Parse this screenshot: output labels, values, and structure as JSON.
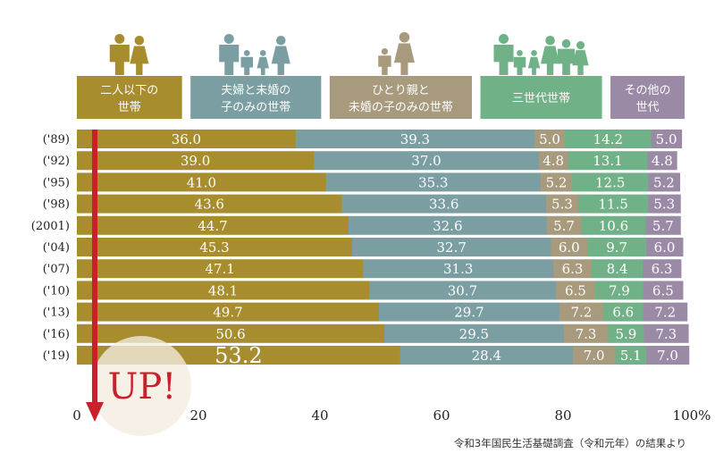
{
  "chart_data": {
    "type": "bar",
    "stacked": true,
    "orientation": "horizontal",
    "categories": [
      "('89)",
      "('92)",
      "('95)",
      "('98)",
      "(2001)",
      "('04)",
      "('07)",
      "('10)",
      "('13)",
      "('16)",
      "('19)"
    ],
    "series": [
      {
        "name": "二人以下の世帯",
        "header_lines": [
          "二人以下の",
          "世帯"
        ],
        "color": "#a88d2f",
        "icon": "couple-icon",
        "values": [
          36.0,
          39.0,
          41.0,
          43.6,
          44.7,
          45.3,
          47.1,
          48.1,
          49.7,
          50.6,
          53.2
        ]
      },
      {
        "name": "夫婦と未婚の子のみの世帯",
        "header_lines": [
          "夫婦と未婚の",
          "子のみの世帯"
        ],
        "color": "#7a9ea1",
        "icon": "family-icon",
        "values": [
          39.3,
          37.0,
          35.3,
          33.6,
          32.6,
          32.7,
          31.3,
          30.7,
          29.7,
          29.5,
          28.4
        ]
      },
      {
        "name": "ひとり親と未婚の子のみの世帯",
        "header_lines": [
          "ひとり親と",
          "未婚の子のみの世帯"
        ],
        "color": "#a79a7d",
        "icon": "single-parent-icon",
        "values": [
          5.0,
          4.8,
          5.2,
          5.3,
          5.7,
          6.0,
          6.3,
          6.5,
          7.2,
          7.3,
          7.0
        ]
      },
      {
        "name": "三世代世帯",
        "header_lines": [
          "三世代世帯"
        ],
        "color": "#71b187",
        "icon": "three-generation-icon",
        "values": [
          14.2,
          13.1,
          12.5,
          11.5,
          10.6,
          9.7,
          8.4,
          7.9,
          6.6,
          5.9,
          5.1
        ]
      },
      {
        "name": "その他の世代",
        "header_lines": [
          "その他の",
          "世代"
        ],
        "color": "#9b8aa6",
        "icon": "others-icon",
        "values": [
          5.0,
          4.8,
          5.2,
          5.3,
          5.7,
          6.0,
          6.3,
          6.5,
          7.2,
          7.3,
          7.0
        ]
      }
    ],
    "value_labels": [
      [
        "36.0",
        "39.3",
        "5.0",
        "14.2",
        "5.0"
      ],
      [
        "39.0",
        "37.0",
        "4.8",
        "13.1",
        "4.8"
      ],
      [
        "41.0",
        "35.3",
        "5.2",
        "12.5",
        "5.2"
      ],
      [
        "43.6",
        "33.6",
        "5.3",
        "11.5",
        "5.3"
      ],
      [
        "44.7",
        "32.6",
        "5.7",
        "10.6",
        "5.7"
      ],
      [
        "45.3",
        "32.7",
        "6.0",
        "9.7",
        "6.0"
      ],
      [
        "47.1",
        "31.3",
        "6.3",
        "8.4",
        "6.3"
      ],
      [
        "48.1",
        "30.7",
        "6.5",
        "7.9",
        "6.5"
      ],
      [
        "49.7",
        "29.7",
        "7.2",
        "6.6",
        "7.2"
      ],
      [
        "50.6",
        "29.5",
        "7.3",
        "5.9",
        "7.3"
      ],
      [
        "53.2",
        "28.4",
        "7.0",
        "5.1",
        "7.0"
      ]
    ],
    "x_ticks": [
      0,
      20,
      40,
      60,
      80,
      100
    ],
    "x_tick_labels": [
      "0",
      "20",
      "40",
      "60",
      "80",
      "100%"
    ],
    "xlim": [
      0,
      100
    ],
    "grid": false,
    "annotation": "UP!",
    "arrow_color": "#c9202c",
    "source_note": "令和3年国民生活基礎調査（令和元年）の結果より"
  }
}
